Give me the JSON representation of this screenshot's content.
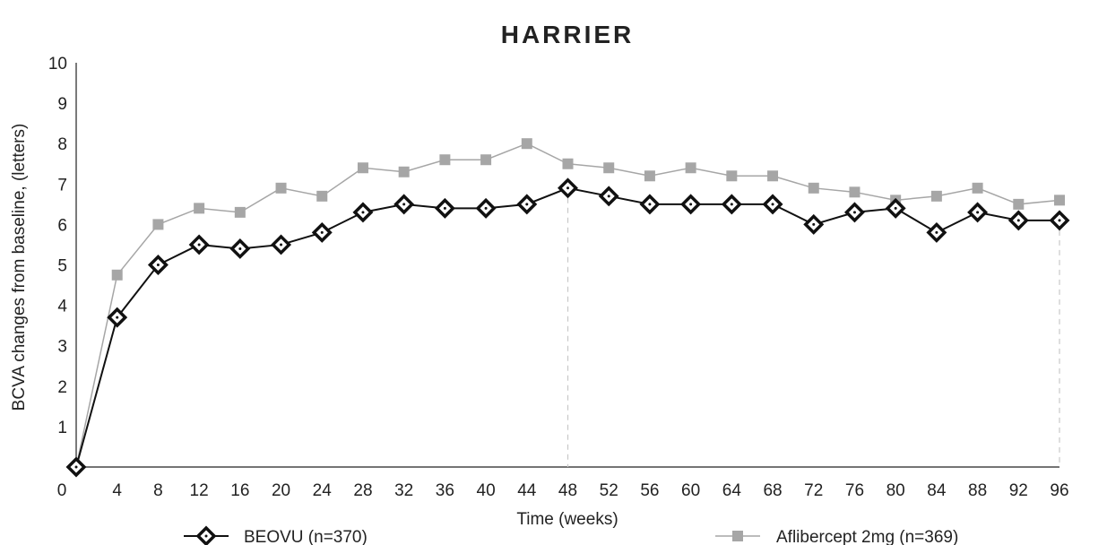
{
  "chart_data": {
    "type": "line",
    "title": "HARRIER",
    "xlabel": "Time (weeks)",
    "ylabel": "BCVA changes from baseline, (letters)",
    "x": [
      0,
      4,
      8,
      12,
      16,
      20,
      24,
      28,
      32,
      36,
      40,
      44,
      48,
      52,
      56,
      60,
      64,
      68,
      72,
      76,
      80,
      84,
      88,
      92,
      96
    ],
    "x_tick_labels": [
      "0",
      "4",
      "8",
      "12",
      "16",
      "20",
      "24",
      "28",
      "32",
      "36",
      "40",
      "44",
      "48",
      "52",
      "56",
      "60",
      "64",
      "68",
      "72",
      "76",
      "80",
      "84",
      "88",
      "92",
      "96"
    ],
    "y_tick_labels": [
      "1",
      "2",
      "3",
      "4",
      "5",
      "6",
      "7",
      "8",
      "9",
      "10"
    ],
    "xlim": [
      0,
      96
    ],
    "ylim": [
      0,
      10
    ],
    "grid": false,
    "reference_lines_x": [
      48,
      96
    ],
    "legend_placement": "bottom",
    "series": [
      {
        "name": "BEOVU (n=370)",
        "color": "#111111",
        "marker": "diamond",
        "values": [
          0,
          3.7,
          5.0,
          5.5,
          5.4,
          5.5,
          5.8,
          6.3,
          6.5,
          6.4,
          6.4,
          6.5,
          6.9,
          6.7,
          6.5,
          6.5,
          6.5,
          6.5,
          6.0,
          6.3,
          6.4,
          5.8,
          6.3,
          6.1,
          6.1
        ]
      },
      {
        "name": "Aflibercept 2mg (n=369)",
        "color": "#a6a6a6",
        "marker": "square",
        "values": [
          0,
          4.75,
          6.0,
          6.4,
          6.3,
          6.9,
          6.7,
          7.4,
          7.3,
          7.6,
          7.6,
          8.0,
          7.5,
          7.4,
          7.2,
          7.4,
          7.2,
          7.2,
          6.9,
          6.8,
          6.6,
          6.7,
          6.9,
          6.5,
          6.6
        ]
      }
    ]
  }
}
